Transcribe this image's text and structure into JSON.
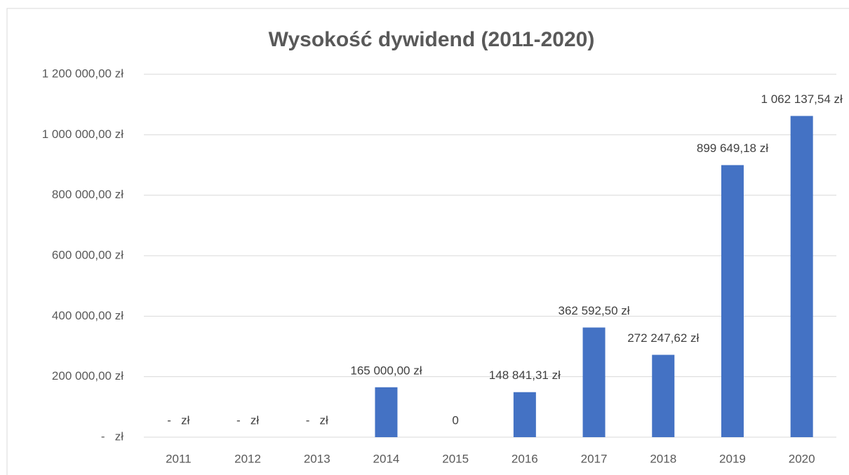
{
  "chart_data": {
    "type": "bar",
    "title": "Wysokość dywidend (2011-2020)",
    "categories": [
      "2011",
      "2012",
      "2013",
      "2014",
      "2015",
      "2016",
      "2017",
      "2018",
      "2019",
      "2020"
    ],
    "values": [
      0,
      0,
      0,
      165000,
      0,
      148841.31,
      362592.5,
      272247.62,
      899649.18,
      1062137.54
    ],
    "value_labels": [
      "-   zł",
      "-   zł",
      "-   zł",
      "165 000,00 zł",
      "0",
      "148 841,31 zł",
      "362 592,50 zł",
      "272 247,62 zł",
      "899 649,18 zł",
      "1 062 137,54 zł"
    ],
    "color": "#4472c4",
    "ylim": [
      0,
      1200000
    ],
    "yticks": [
      {
        "value": 0,
        "label": "-   zł"
      },
      {
        "value": 200000,
        "label": "200 000,00 zł"
      },
      {
        "value": 400000,
        "label": "400 000,00 zł"
      },
      {
        "value": 600000,
        "label": "600 000,00 zł"
      },
      {
        "value": 800000,
        "label": "800 000,00 zł"
      },
      {
        "value": 1000000,
        "label": "1 000 000,00 zł"
      },
      {
        "value": 1200000,
        "label": "1 200 000,00 zł"
      }
    ],
    "grid": true
  }
}
